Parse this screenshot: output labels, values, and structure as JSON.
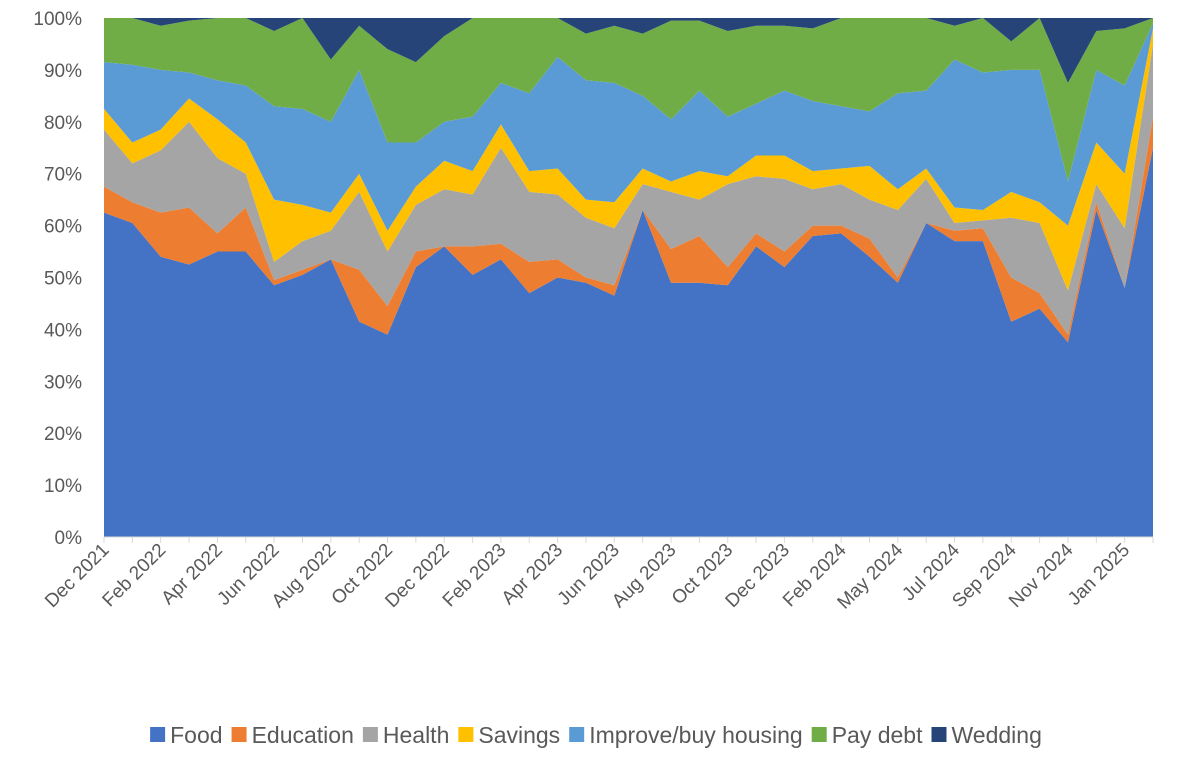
{
  "chart_data": {
    "type": "stacked_area_percent",
    "categories": [
      "Dec 2021",
      null,
      "Feb 2022",
      null,
      "Apr 2022",
      null,
      "Jun 2022",
      null,
      "Aug 2022",
      null,
      "Oct 2022",
      null,
      "Dec 2022",
      null,
      "Feb 2023",
      null,
      "Apr 2023",
      null,
      "Jun 2023",
      null,
      "Aug 2023",
      null,
      "Oct 2023",
      null,
      "Dec 2023",
      null,
      "Feb 2024",
      null,
      "May 2024",
      null,
      "Jul 2024",
      null,
      "Sep 2024",
      null,
      "Nov 2024",
      null,
      "Jan 2025",
      null
    ],
    "series": [
      {
        "name": "Food",
        "color": "#4472c4",
        "values": [
          62.5,
          60.5,
          54,
          52.5,
          55,
          55,
          48.5,
          50.5,
          53.5,
          41.5,
          39,
          52,
          56,
          50.5,
          53.5,
          47,
          50,
          49,
          46.5,
          63,
          49,
          49,
          48.5,
          56,
          52,
          58,
          58.5,
          54,
          49,
          60.5,
          57,
          57,
          41.5,
          44,
          37.5,
          63,
          48,
          75
        ]
      },
      {
        "name": "Education",
        "color": "#ed7d31",
        "values": [
          5,
          4,
          8.5,
          11,
          3.5,
          8.5,
          1,
          1,
          0,
          10,
          5.5,
          3,
          0,
          5.5,
          3,
          6,
          3.5,
          1,
          2,
          0,
          6.5,
          9,
          3.5,
          2.5,
          3,
          2,
          1.5,
          3.5,
          1,
          0,
          2,
          2.5,
          8.5,
          3,
          1.5,
          1.5,
          0,
          6
        ]
      },
      {
        "name": "Health",
        "color": "#a5a5a5",
        "values": [
          11,
          7.5,
          12,
          16.5,
          14.5,
          6.5,
          3.5,
          5.5,
          5.5,
          15,
          10.5,
          9,
          11,
          10,
          18.5,
          13.5,
          12.5,
          11.5,
          11,
          5,
          11,
          7,
          16,
          11,
          14,
          7,
          8,
          7.5,
          13,
          8.5,
          1.5,
          1.5,
          11.5,
          13.5,
          8.5,
          3.5,
          11.5,
          14
        ]
      },
      {
        "name": "Savings",
        "color": "#ffc000",
        "values": [
          4,
          4,
          4,
          4.5,
          7.5,
          6,
          12,
          7,
          3.5,
          3.5,
          4,
          3.5,
          5.5,
          4.5,
          4.5,
          4,
          5,
          3.5,
          5,
          3,
          2,
          5.5,
          1.5,
          4,
          4.5,
          3.5,
          3,
          6.5,
          4,
          2,
          3,
          2,
          5,
          4,
          12.5,
          8,
          10.5,
          3
        ]
      },
      {
        "name": "Improve/buy housing",
        "color": "#5b9bd5",
        "values": [
          9,
          15,
          11.5,
          5,
          7.5,
          11,
          18,
          18.5,
          17.5,
          20,
          17,
          8.5,
          7.5,
          10.5,
          8,
          15,
          21.5,
          23,
          23,
          14,
          12,
          15.5,
          11.5,
          10,
          12.5,
          13.5,
          12,
          10.5,
          18.5,
          15,
          28.5,
          26.5,
          23.5,
          25.5,
          8.5,
          14,
          17,
          1
        ]
      },
      {
        "name": "Pay debt",
        "color": "#70ad47",
        "values": [
          8.5,
          9,
          8.5,
          10,
          12,
          13,
          14.5,
          17.5,
          12,
          8.5,
          18,
          15.5,
          16.5,
          19,
          12.5,
          14.5,
          7.5,
          9,
          11,
          12,
          19,
          13.5,
          16.5,
          15,
          12.5,
          14,
          17,
          18,
          14.5,
          14,
          6.5,
          10.5,
          5.5,
          10,
          19,
          7.5,
          11,
          1
        ]
      },
      {
        "name": "Wedding",
        "color": "#264478",
        "values": [
          0,
          0,
          1.5,
          0.5,
          0,
          0,
          2.5,
          0,
          8,
          1.5,
          6,
          8.5,
          3.5,
          0,
          0,
          0,
          0,
          3,
          1.5,
          3,
          0.5,
          0.5,
          2.5,
          1.5,
          1.5,
          2,
          0,
          0,
          0,
          0,
          1.5,
          0,
          4.5,
          0,
          12.5,
          2.5,
          2,
          0
        ]
      }
    ],
    "ylim": [
      0,
      100
    ],
    "yticks": [
      {
        "value": 0,
        "label": "0%"
      },
      {
        "value": 10,
        "label": "10%"
      },
      {
        "value": 20,
        "label": "20%"
      },
      {
        "value": 30,
        "label": "30%"
      },
      {
        "value": 40,
        "label": "40%"
      },
      {
        "value": 50,
        "label": "50%"
      },
      {
        "value": 60,
        "label": "60%"
      },
      {
        "value": 70,
        "label": "70%"
      },
      {
        "value": 80,
        "label": "80%"
      },
      {
        "value": 90,
        "label": "90%"
      },
      {
        "value": 100,
        "label": "100%"
      }
    ],
    "grid": false,
    "legend": "bottom"
  }
}
